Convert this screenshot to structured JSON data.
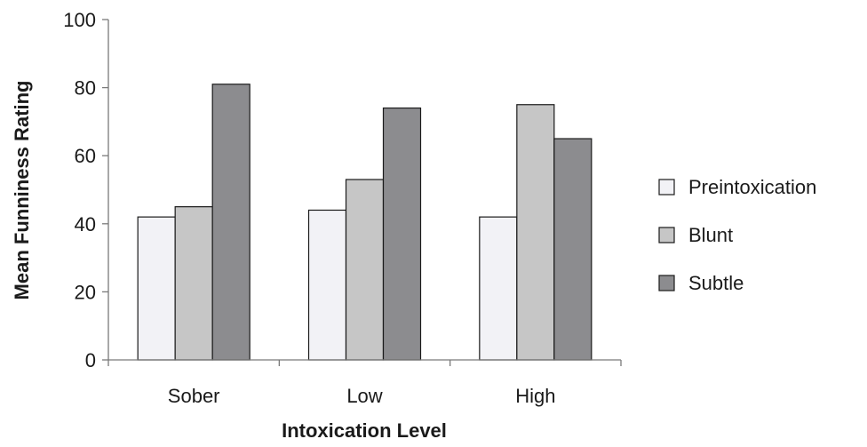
{
  "chart_data": {
    "type": "bar",
    "title": "",
    "xlabel": "Intoxication Level",
    "ylabel": "Mean Funniness Rating",
    "categories": [
      "Sober",
      "Low",
      "High"
    ],
    "ylim": [
      0,
      100
    ],
    "yticks": [
      0,
      20,
      40,
      60,
      80,
      100
    ],
    "grid": false,
    "legend_position": "right",
    "series": [
      {
        "name": "Preintoxication",
        "color": "#f2f2f6",
        "values": [
          42,
          44,
          42
        ]
      },
      {
        "name": "Blunt",
        "color": "#c6c6c6",
        "values": [
          45,
          53,
          75
        ]
      },
      {
        "name": "Subtle",
        "color": "#8c8c8f",
        "values": [
          81,
          74,
          65
        ]
      }
    ]
  }
}
